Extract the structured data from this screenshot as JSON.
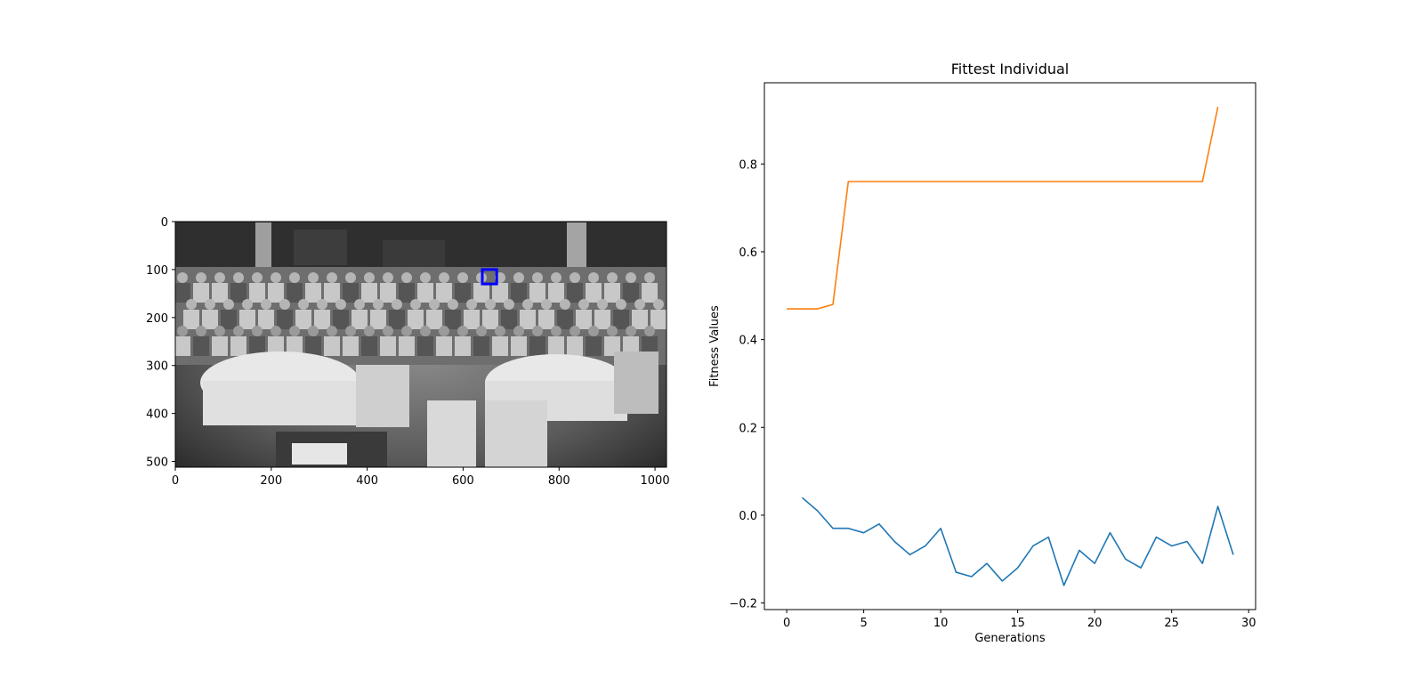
{
  "image_panel": {
    "x_ticks": [
      "0",
      "200",
      "400",
      "600",
      "800",
      "1000"
    ],
    "x_tick_values": [
      0,
      200,
      400,
      600,
      800,
      1000
    ],
    "y_ticks": [
      "0",
      "100",
      "200",
      "300",
      "400",
      "500"
    ],
    "y_tick_values": [
      0,
      100,
      200,
      300,
      400,
      500
    ],
    "xlim": [
      0,
      1024
    ],
    "ylim": [
      512,
      0
    ],
    "detected_box": {
      "x0": 640,
      "y0": 100,
      "x1": 670,
      "y1": 130
    },
    "box_color": "#0000ff",
    "photo_tone": "grayscale group photo"
  },
  "chart_data": {
    "type": "line",
    "title": "Fittest Individual",
    "xlabel": "Generations",
    "ylabel": "Fitness Values",
    "xlim": [
      -1.45,
      30.45
    ],
    "ylim": [
      -0.215,
      0.985
    ],
    "x_ticks": [
      0,
      5,
      10,
      15,
      20,
      25,
      30
    ],
    "y_ticks": [
      -0.2,
      0.0,
      0.2,
      0.4,
      0.6,
      0.8
    ],
    "x_tick_labels": [
      "0",
      "5",
      "10",
      "15",
      "20",
      "25",
      "30"
    ],
    "y_tick_labels": [
      "−0.2",
      "0.0",
      "0.2",
      "0.4",
      "0.6",
      "0.8"
    ],
    "grid": false,
    "series": [
      {
        "color": "#1f77b4",
        "x": [
          1,
          2,
          3,
          4,
          5,
          6,
          7,
          8,
          9,
          10,
          11,
          12,
          13,
          14,
          15,
          16,
          17,
          18,
          19,
          20,
          21,
          22,
          23,
          24,
          25,
          26,
          27,
          28,
          29
        ],
        "values": [
          0.04,
          0.01,
          -0.03,
          -0.03,
          -0.04,
          -0.02,
          -0.06,
          -0.09,
          -0.07,
          -0.03,
          -0.13,
          -0.14,
          -0.11,
          -0.15,
          -0.12,
          -0.07,
          -0.05,
          -0.16,
          -0.08,
          -0.11,
          -0.04,
          -0.1,
          -0.12,
          -0.05,
          -0.07,
          -0.06,
          -0.11,
          0.02,
          -0.09
        ]
      },
      {
        "color": "#ff7f0e",
        "x": [
          0,
          1,
          2,
          3,
          4,
          5,
          6,
          7,
          8,
          9,
          10,
          11,
          12,
          13,
          14,
          15,
          16,
          17,
          18,
          19,
          20,
          21,
          22,
          23,
          24,
          25,
          26,
          27,
          28
        ],
        "values": [
          0.47,
          0.47,
          0.47,
          0.48,
          0.76,
          0.76,
          0.76,
          0.76,
          0.76,
          0.76,
          0.76,
          0.76,
          0.76,
          0.76,
          0.76,
          0.76,
          0.76,
          0.76,
          0.76,
          0.76,
          0.76,
          0.76,
          0.76,
          0.76,
          0.76,
          0.76,
          0.76,
          0.76,
          0.93
        ]
      }
    ]
  }
}
